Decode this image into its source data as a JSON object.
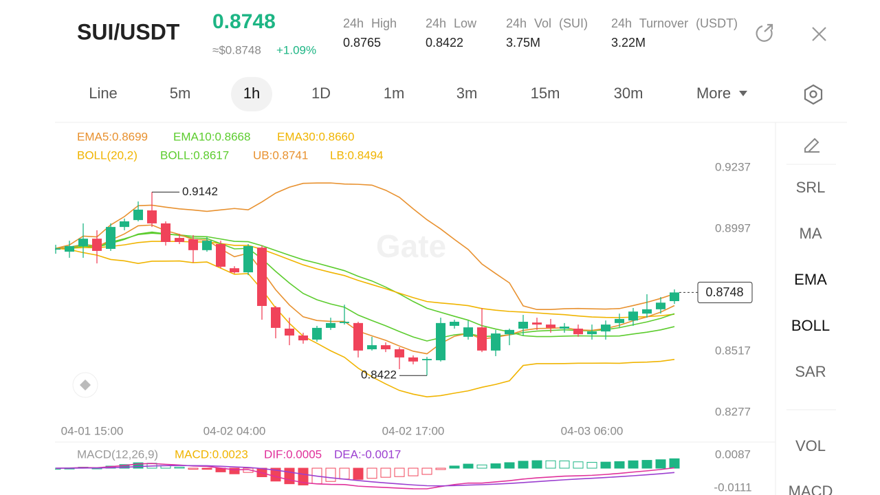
{
  "header": {
    "pair": "SUI/USDT",
    "price": "0.8748",
    "usd": "≈$0.8748",
    "change": "+1.09%",
    "stats": [
      {
        "label": "24h High",
        "value": "0.8765"
      },
      {
        "label": "24h Low",
        "value": "0.8422"
      },
      {
        "label": "24h Vol (SUI)",
        "value": "3.75M"
      },
      {
        "label": "24h Turnover (USDT)",
        "value": "3.22M"
      }
    ]
  },
  "tabs": [
    "Line",
    "5m",
    "1h",
    "1D",
    "1m",
    "3m",
    "15m",
    "30m",
    "More"
  ],
  "indicators": {
    "ema": [
      "EMA5:0.8699",
      "EMA10:0.8668",
      "EMA30:0.8660"
    ],
    "boll": [
      "BOLL(20,2)",
      "BOLL:0.8617",
      "UB:0.8741",
      "LB:0.8494"
    ]
  },
  "watermark": "Gate",
  "side_menu": [
    "SRL",
    "MA",
    "EMA",
    "BOLL",
    "SAR",
    "VOL",
    "MACD"
  ],
  "macd": {
    "labels": [
      "MACD(12,26,9)",
      "MACD:0.0023",
      "DIF:0.0005",
      "DEA:-0.0017"
    ],
    "axis": [
      "0.0087",
      "-0.0111"
    ]
  },
  "chart_data": {
    "type": "candlestick",
    "categories": [
      "04-01 15:00",
      null,
      null,
      null,
      null,
      null,
      null,
      null,
      null,
      null,
      null,
      null,
      null,
      "04-02 04:00",
      null,
      null,
      null,
      null,
      null,
      null,
      null,
      null,
      null,
      null,
      null,
      null,
      "04-02 17:00",
      null,
      null,
      null,
      null,
      null,
      null,
      null,
      null,
      null,
      null,
      null,
      null,
      "04-03 06:00",
      null,
      null,
      null,
      null,
      null,
      null
    ],
    "open": [
      0.8916,
      0.8908,
      0.893,
      0.8959,
      0.8919,
      0.9005,
      0.9032,
      0.907,
      0.9019,
      0.8962,
      0.8957,
      0.8914,
      0.8938,
      0.8843,
      0.8827,
      0.8924,
      0.869,
      0.8606,
      0.8579,
      0.8563,
      0.8609,
      0.8628,
      0.8628,
      0.8525,
      0.8541,
      0.8525,
      0.8493,
      0.8482,
      0.8482,
      0.8617,
      0.8574,
      0.8611,
      0.852,
      0.8584,
      0.8606,
      0.863,
      0.8622,
      0.8606,
      0.8606,
      0.8584,
      0.8595,
      0.8628,
      0.8638,
      0.8665,
      0.8682,
      0.8714
    ],
    "high": [
      0.8935,
      0.8951,
      0.9019,
      0.8992,
      0.9019,
      0.9038,
      0.9105,
      0.9142,
      0.9027,
      0.8978,
      0.8973,
      0.8965,
      0.8951,
      0.8851,
      0.8938,
      0.8932,
      0.8695,
      0.8649,
      0.859,
      0.8617,
      0.8649,
      0.87,
      0.8633,
      0.8574,
      0.8552,
      0.8533,
      0.8501,
      0.8495,
      0.8649,
      0.8641,
      0.8638,
      0.8687,
      0.8601,
      0.8606,
      0.866,
      0.8649,
      0.8644,
      0.8628,
      0.8622,
      0.8622,
      0.8638,
      0.8665,
      0.8687,
      0.8741,
      0.873,
      0.876
    ],
    "low": [
      0.89,
      0.8884,
      0.8884,
      0.8862,
      0.8911,
      0.8992,
      0.9027,
      0.9005,
      0.8932,
      0.8938,
      0.8865,
      0.8908,
      0.8843,
      0.8822,
      0.8816,
      0.8641,
      0.8568,
      0.8541,
      0.8547,
      0.8555,
      0.8601,
      0.8622,
      0.8493,
      0.852,
      0.8514,
      0.8447,
      0.8466,
      0.8422,
      0.8477,
      0.8606,
      0.8563,
      0.8514,
      0.8498,
      0.8541,
      0.8579,
      0.8601,
      0.859,
      0.859,
      0.8574,
      0.8563,
      0.8563,
      0.8611,
      0.8617,
      0.8649,
      0.8665,
      0.8703
    ],
    "close": [
      0.8921,
      0.893,
      0.8959,
      0.8911,
      0.9005,
      0.9027,
      0.9073,
      0.9019,
      0.8946,
      0.8946,
      0.8914,
      0.8951,
      0.8849,
      0.8827,
      0.893,
      0.8695,
      0.8609,
      0.8579,
      0.856,
      0.8609,
      0.8628,
      0.8633,
      0.852,
      0.8541,
      0.8525,
      0.8493,
      0.8477,
      0.8487,
      0.8628,
      0.8633,
      0.8611,
      0.852,
      0.8587,
      0.8601,
      0.8633,
      0.8622,
      0.8609,
      0.8614,
      0.8584,
      0.8595,
      0.8622,
      0.8644,
      0.8673,
      0.8682,
      0.8708,
      0.8748
    ],
    "up_color": "#1db584",
    "down_color": "#f0435a",
    "ylim": [
      0.8169,
      0.941
    ],
    "yticks": [
      0.9237,
      0.8997,
      0.8517,
      0.8277
    ],
    "grid": false
  }
}
